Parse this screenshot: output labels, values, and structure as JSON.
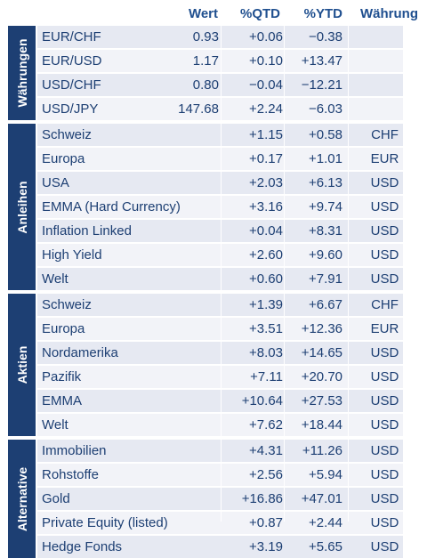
{
  "header": {
    "wert": "Wert",
    "qtd": "%QTD",
    "ytd": "%YTD",
    "currency": "Währung"
  },
  "groups": [
    {
      "label": "Währungen",
      "rows": [
        {
          "name": "EUR/CHF",
          "wert": "0.93",
          "qtd": "+0.06",
          "ytd": "−0.38",
          "cur": ""
        },
        {
          "name": "EUR/USD",
          "wert": "1.17",
          "qtd": "+0.10",
          "ytd": "+13.47",
          "cur": ""
        },
        {
          "name": "USD/CHF",
          "wert": "0.80",
          "qtd": "−0.04",
          "ytd": "−12.21",
          "cur": ""
        },
        {
          "name": "USD/JPY",
          "wert": "147.68",
          "qtd": "+2.24",
          "ytd": "−6.03",
          "cur": ""
        }
      ]
    },
    {
      "label": "Anleihen",
      "rows": [
        {
          "name": "Schweiz",
          "wert": "",
          "qtd": "+1.15",
          "ytd": "+0.58",
          "cur": "CHF"
        },
        {
          "name": "Europa",
          "wert": "",
          "qtd": "+0.17",
          "ytd": "+1.01",
          "cur": "EUR"
        },
        {
          "name": "USA",
          "wert": "",
          "qtd": "+2.03",
          "ytd": "+6.13",
          "cur": "USD"
        },
        {
          "name": "EMMA (Hard Currency)",
          "wert": "",
          "qtd": "+3.16",
          "ytd": "+9.74",
          "cur": "USD"
        },
        {
          "name": "Inflation Linked",
          "wert": "",
          "qtd": "+0.04",
          "ytd": "+8.31",
          "cur": "USD"
        },
        {
          "name": "High Yield",
          "wert": "",
          "qtd": "+2.60",
          "ytd": "+9.60",
          "cur": "USD"
        },
        {
          "name": "Welt",
          "wert": "",
          "qtd": "+0.60",
          "ytd": "+7.91",
          "cur": "USD"
        }
      ]
    },
    {
      "label": "Aktien",
      "rows": [
        {
          "name": "Schweiz",
          "wert": "",
          "qtd": "+1.39",
          "ytd": "+6.67",
          "cur": "CHF"
        },
        {
          "name": "Europa",
          "wert": "",
          "qtd": "+3.51",
          "ytd": "+12.36",
          "cur": "EUR"
        },
        {
          "name": "Nordamerika",
          "wert": "",
          "qtd": "+8.03",
          "ytd": "+14.65",
          "cur": "USD"
        },
        {
          "name": "Pazifik",
          "wert": "",
          "qtd": "+7.11",
          "ytd": "+20.70",
          "cur": "USD"
        },
        {
          "name": "EMMA",
          "wert": "",
          "qtd": "+10.64",
          "ytd": "+27.53",
          "cur": "USD"
        },
        {
          "name": "Welt",
          "wert": "",
          "qtd": "+7.62",
          "ytd": "+18.44",
          "cur": "USD"
        }
      ]
    },
    {
      "label": "Alternative",
      "rows": [
        {
          "name": "Immobilien",
          "wert": "",
          "qtd": "+4.31",
          "ytd": "+11.26",
          "cur": "USD"
        },
        {
          "name": "Rohstoffe",
          "wert": "",
          "qtd": "+2.56",
          "ytd": "+5.94",
          "cur": "USD"
        },
        {
          "name": "Gold",
          "wert": "",
          "qtd": "+16.86",
          "ytd": "+47.01",
          "cur": "USD"
        },
        {
          "name": "Private Equity (listed)",
          "wert": "",
          "qtd": "+0.87",
          "ytd": "+2.44",
          "cur": "USD"
        },
        {
          "name": "Hedge Fonds",
          "wert": "",
          "qtd": "+3.19",
          "ytd": "+5.65",
          "cur": "USD"
        }
      ]
    }
  ]
}
